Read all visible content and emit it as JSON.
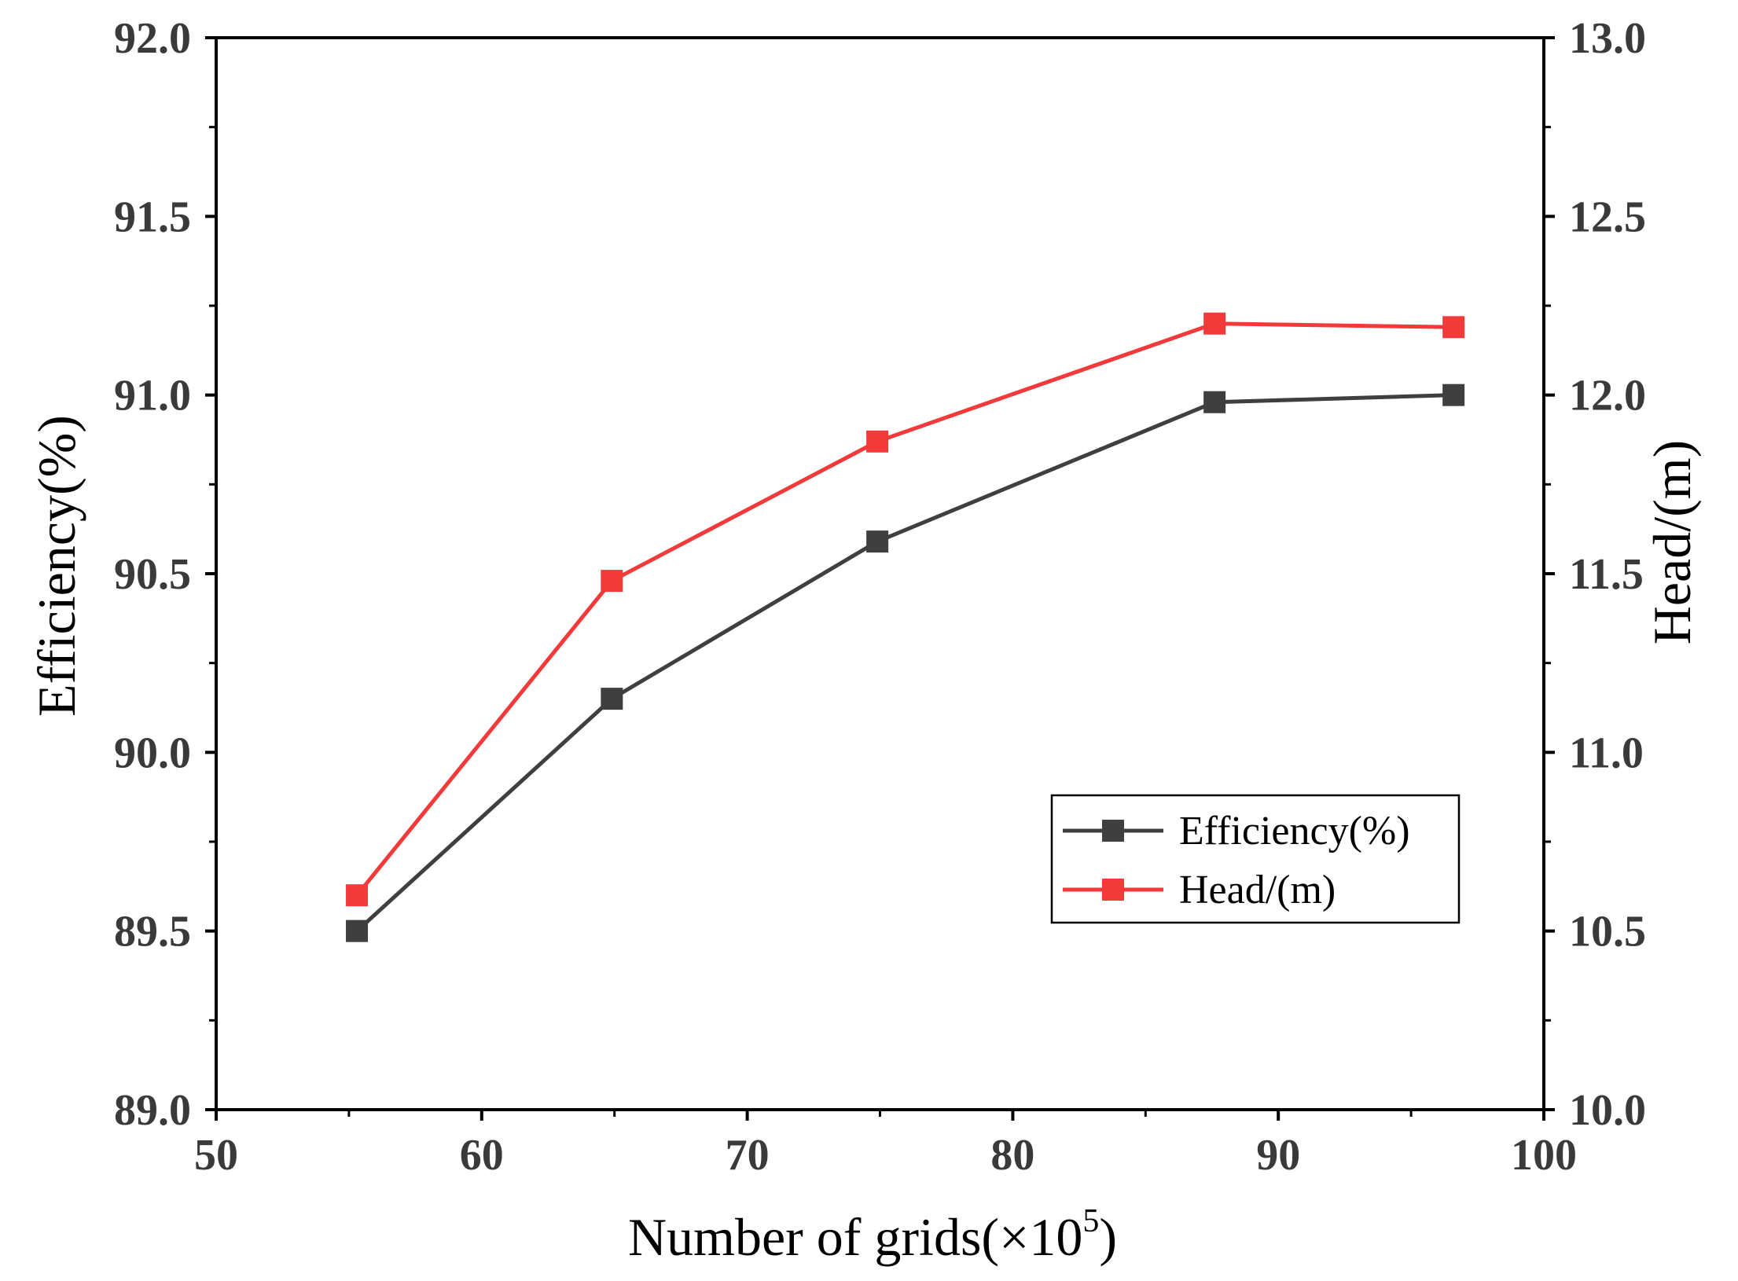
{
  "chart_data": {
    "type": "line",
    "x": [
      55.3,
      64.9,
      74.9,
      87.6,
      96.6
    ],
    "x_label_main": "Number of grids(×10",
    "x_label_sup": "5",
    "x_label_close": ")",
    "xlim": [
      50,
      100
    ],
    "x_ticks": [
      "50",
      "60",
      "70",
      "80",
      "90",
      "100"
    ],
    "y_left": {
      "label": "Efficiency(%)",
      "lim": [
        89.0,
        92.0
      ],
      "ticks": [
        "89.0",
        "89.5",
        "90.0",
        "90.5",
        "91.0",
        "91.5",
        "92.0"
      ]
    },
    "y_right": {
      "label": "Head/(m)",
      "lim": [
        10.0,
        13.0
      ],
      "ticks": [
        "10.0",
        "10.5",
        "11.0",
        "11.5",
        "12.0",
        "12.5",
        "13.0"
      ]
    },
    "series": [
      {
        "name": "Efficiency(%)",
        "axis": "left",
        "color": "#3f3f3f",
        "values": [
          89.5,
          90.15,
          90.59,
          90.98,
          91.0
        ]
      },
      {
        "name": "Head/(m)",
        "axis": "right",
        "color": "#f23a3a",
        "values": [
          10.6,
          11.48,
          11.87,
          12.2,
          12.19
        ]
      }
    ],
    "legend": {
      "position": "lower-right",
      "labels": [
        "Efficiency(%)",
        "Head/(m)"
      ]
    },
    "grid": false
  }
}
